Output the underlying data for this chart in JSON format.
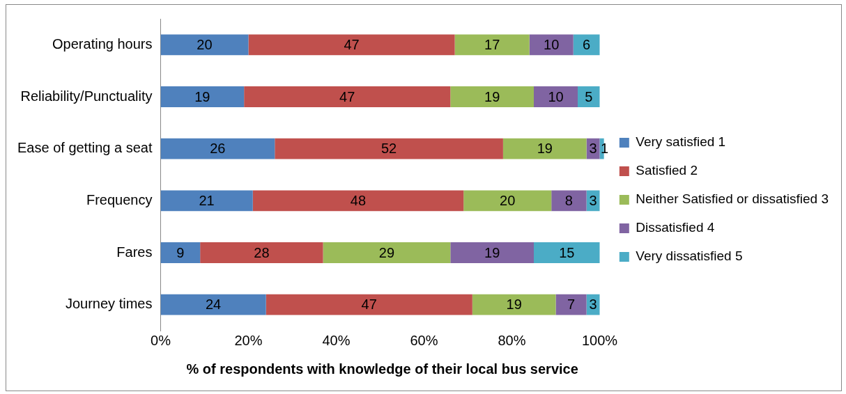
{
  "chart_data": {
    "type": "bar",
    "orientation": "horizontal",
    "stacked": true,
    "xlabel": "% of respondents with knowledge of their local bus service",
    "categories": [
      "Operating hours",
      "Reliability/Punctuality",
      "Ease of getting a seat",
      "Frequency",
      "Fares",
      "Journey times"
    ],
    "series": [
      {
        "name": "Very satisfied 1",
        "color": "#4f81bd",
        "values": [
          20,
          19,
          26,
          21,
          9,
          24
        ]
      },
      {
        "name": "Satisfied 2",
        "color": "#c0504d",
        "values": [
          47,
          47,
          52,
          48,
          28,
          47
        ]
      },
      {
        "name": "Neither Satisfied or dissatisfied 3",
        "color": "#9bbb59",
        "values": [
          17,
          19,
          19,
          20,
          29,
          19
        ]
      },
      {
        "name": "Dissatisfied 4",
        "color": "#8064a2",
        "values": [
          10,
          10,
          3,
          8,
          19,
          7
        ]
      },
      {
        "name": "Very dissatisfied 5",
        "color": "#4bacc6",
        "values": [
          6,
          5,
          1,
          3,
          15,
          3
        ]
      }
    ],
    "xlim": [
      0,
      101
    ],
    "xticks": [
      {
        "value": 0,
        "label": "0%"
      },
      {
        "value": 20,
        "label": "20%"
      },
      {
        "value": 40,
        "label": "40%"
      },
      {
        "value": 60,
        "label": "60%"
      },
      {
        "value": 80,
        "label": "80%"
      },
      {
        "value": 100,
        "label": "100%"
      }
    ],
    "grid": false,
    "legend": "right",
    "data_labels": true
  }
}
